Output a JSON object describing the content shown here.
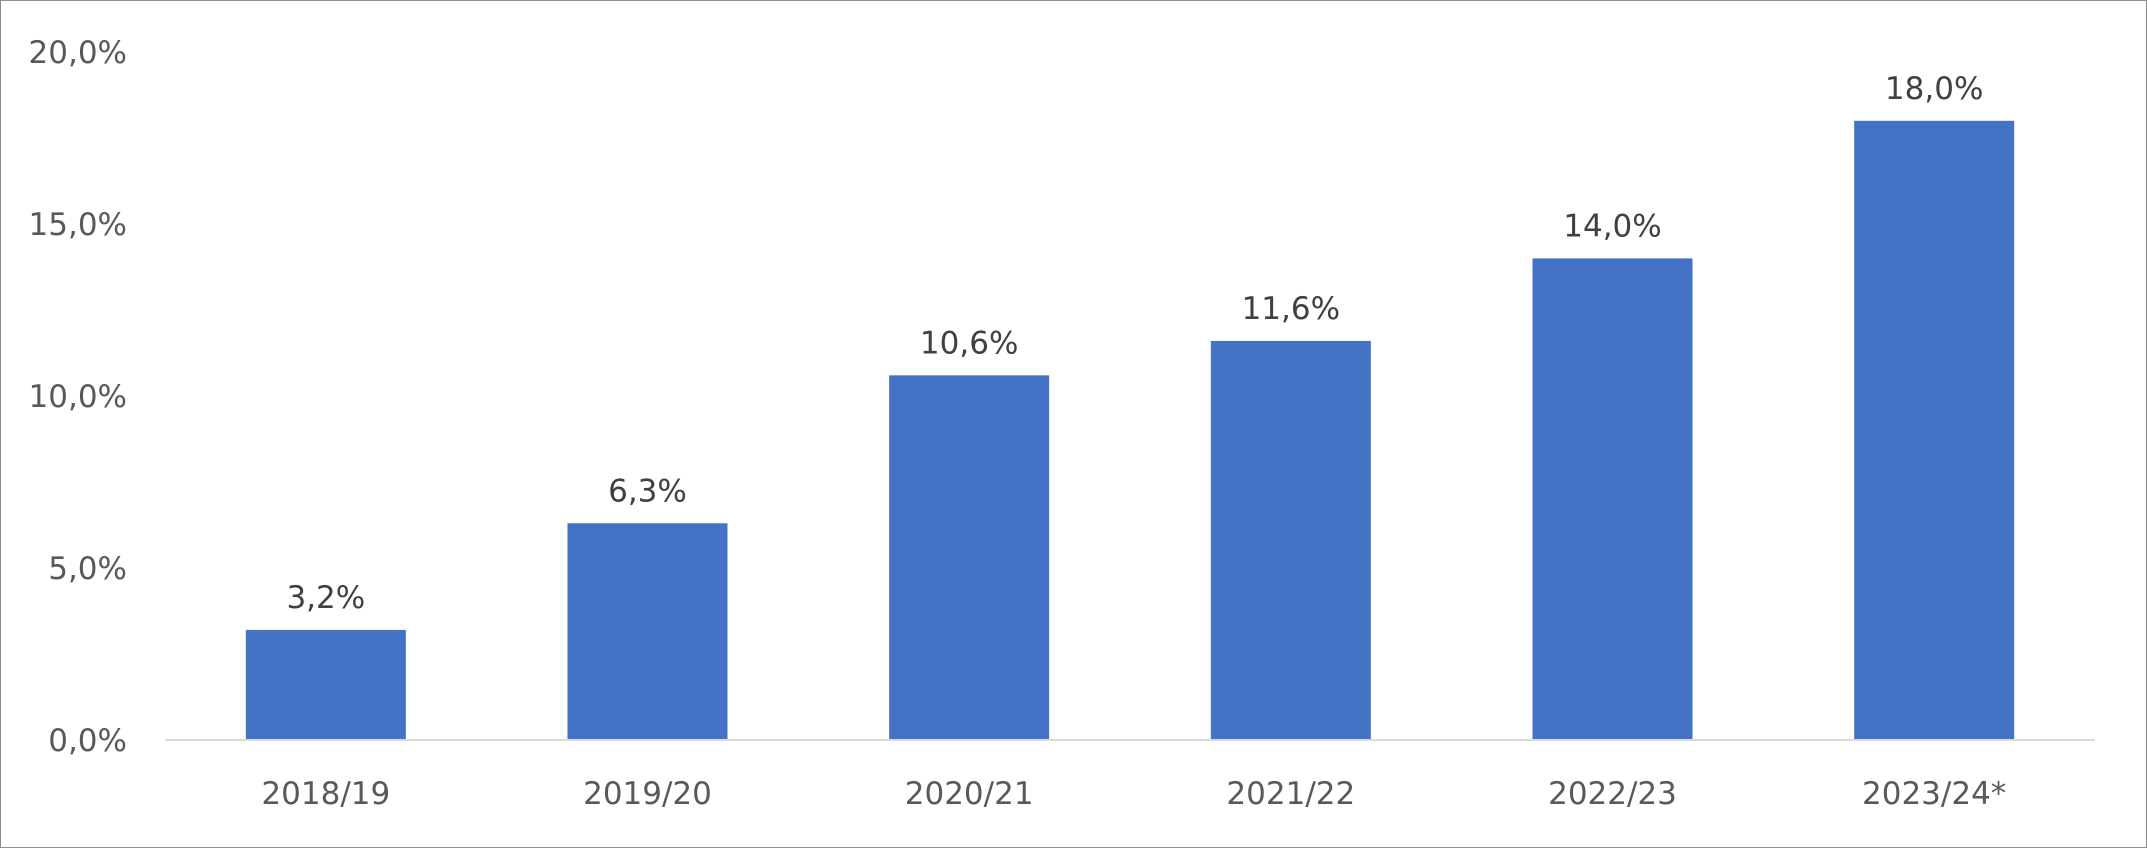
{
  "chart_data": {
    "type": "bar",
    "categories": [
      "2018/19",
      "2019/20",
      "2020/21",
      "2021/22",
      "2022/23",
      "2023/24*"
    ],
    "values": [
      3.2,
      6.3,
      10.6,
      11.6,
      14.0,
      18.0
    ],
    "data_labels": [
      "3,2%",
      "6,3%",
      "10,6%",
      "11,6%",
      "14,0%",
      "18,0%"
    ],
    "y_ticks": [
      {
        "value": 0,
        "label": "0,0%"
      },
      {
        "value": 5,
        "label": "5,0%"
      },
      {
        "value": 10,
        "label": "10,0%"
      },
      {
        "value": 15,
        "label": "15,0%"
      },
      {
        "value": 20,
        "label": "20,0%"
      }
    ],
    "ylim": [
      0,
      20
    ],
    "grid": false,
    "legend": "none",
    "bar_color": "#4472C4"
  }
}
